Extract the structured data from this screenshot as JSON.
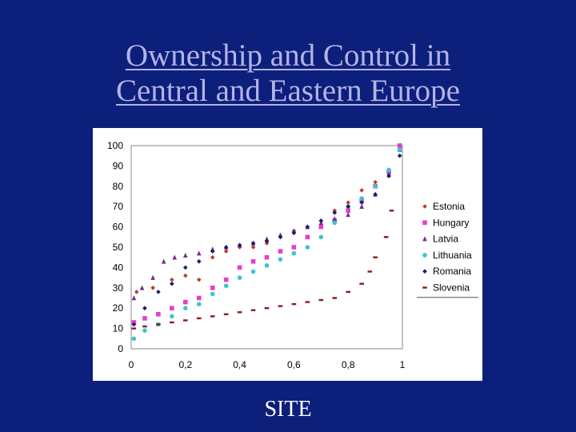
{
  "title_line1": "Ownership and Control in",
  "title_line2": "Central and Eastern Europe",
  "footer": "SITE",
  "chart_data": {
    "type": "scatter",
    "title": "",
    "xlabel": "",
    "ylabel": "",
    "xlim": [
      0,
      1
    ],
    "ylim": [
      0,
      100
    ],
    "x_ticks": [
      "0",
      "0,2",
      "0,4",
      "0,6",
      "0,8",
      "1"
    ],
    "y_ticks": [
      "0",
      "10",
      "20",
      "30",
      "40",
      "50",
      "60",
      "70",
      "80",
      "90",
      "100"
    ],
    "grid": false,
    "legend_position": "right",
    "series": [
      {
        "name": "Estonia",
        "color": "#c0392b",
        "marker": "diamond",
        "x": [
          0.02,
          0.08,
          0.15,
          0.2,
          0.25,
          0.3,
          0.35,
          0.4,
          0.45,
          0.5,
          0.55,
          0.6,
          0.65,
          0.7,
          0.75,
          0.8,
          0.85,
          0.9,
          0.95,
          0.99
        ],
        "y": [
          28,
          30,
          34,
          36,
          34,
          45,
          48,
          50,
          50,
          52,
          55,
          58,
          60,
          63,
          68,
          72,
          78,
          82,
          88,
          99
        ]
      },
      {
        "name": "Hungary",
        "color": "#e33fd0",
        "marker": "square",
        "x": [
          0.01,
          0.05,
          0.1,
          0.15,
          0.2,
          0.25,
          0.3,
          0.35,
          0.4,
          0.45,
          0.5,
          0.55,
          0.6,
          0.65,
          0.7,
          0.75,
          0.8,
          0.85,
          0.9,
          0.95,
          0.99
        ],
        "y": [
          13,
          15,
          17,
          20,
          23,
          25,
          30,
          34,
          40,
          43,
          45,
          48,
          50,
          55,
          60,
          63,
          68,
          73,
          80,
          87,
          100
        ]
      },
      {
        "name": "Latvia",
        "color": "#7a2d8c",
        "marker": "triangle",
        "x": [
          0.01,
          0.04,
          0.08,
          0.12,
          0.16,
          0.2,
          0.25,
          0.3,
          0.35,
          0.4,
          0.45,
          0.5,
          0.55,
          0.6,
          0.65,
          0.7,
          0.75,
          0.8,
          0.85,
          0.9,
          0.95,
          0.99
        ],
        "y": [
          25,
          30,
          35,
          43,
          45,
          46,
          47,
          49,
          50,
          51,
          52,
          54,
          56,
          58,
          60,
          62,
          64,
          66,
          70,
          76,
          86,
          98
        ]
      },
      {
        "name": "Lithuania",
        "color": "#3cc6c8",
        "marker": "circle",
        "x": [
          0.01,
          0.05,
          0.1,
          0.15,
          0.2,
          0.25,
          0.3,
          0.35,
          0.4,
          0.45,
          0.5,
          0.55,
          0.6,
          0.65,
          0.7,
          0.75,
          0.8,
          0.85,
          0.9,
          0.95,
          0.99
        ],
        "y": [
          5,
          9,
          12,
          16,
          20,
          22,
          27,
          31,
          35,
          38,
          41,
          44,
          47,
          50,
          55,
          62,
          70,
          74,
          80,
          88,
          98
        ]
      },
      {
        "name": "Romania",
        "color": "#1a1a6e",
        "marker": "diamond",
        "x": [
          0.01,
          0.05,
          0.1,
          0.15,
          0.2,
          0.25,
          0.3,
          0.35,
          0.4,
          0.45,
          0.5,
          0.55,
          0.6,
          0.65,
          0.7,
          0.75,
          0.8,
          0.85,
          0.9,
          0.95,
          0.99
        ],
        "y": [
          12,
          20,
          28,
          32,
          40,
          43,
          48,
          50,
          51,
          52,
          53,
          55,
          57,
          60,
          63,
          67,
          70,
          72,
          76,
          85,
          95
        ]
      },
      {
        "name": "Slovenia",
        "color": "#8b1a1a",
        "marker": "dash",
        "x": [
          0.01,
          0.05,
          0.1,
          0.15,
          0.2,
          0.25,
          0.3,
          0.35,
          0.4,
          0.45,
          0.5,
          0.55,
          0.6,
          0.65,
          0.7,
          0.75,
          0.8,
          0.85,
          0.88,
          0.9,
          0.94,
          0.96
        ],
        "y": [
          10,
          11,
          12,
          13,
          14,
          15,
          16,
          17,
          18,
          19,
          20,
          21,
          22,
          23,
          24,
          25,
          28,
          32,
          38,
          45,
          55,
          68
        ]
      }
    ]
  }
}
